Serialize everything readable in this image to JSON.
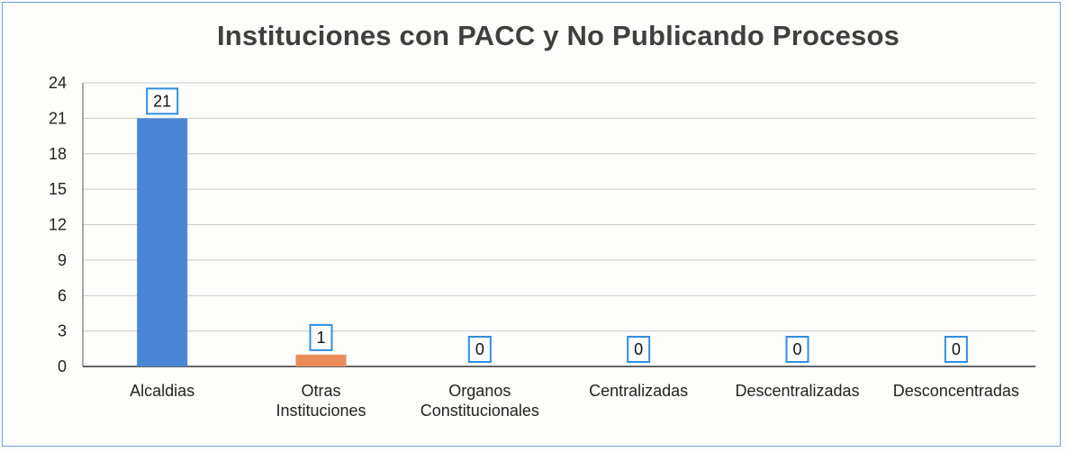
{
  "chart_data": {
    "type": "bar",
    "title": "Instituciones con PACC y No Publicando Procesos",
    "categories": [
      [
        "Alcaldias"
      ],
      [
        "Otras",
        "Instituciones"
      ],
      [
        "Organos",
        "Constitucionales"
      ],
      [
        "Centralizadas"
      ],
      [
        "Descentralizadas"
      ],
      [
        "Desconcentradas"
      ]
    ],
    "values": [
      21,
      1,
      0,
      0,
      0,
      0
    ],
    "bar_colors": [
      "#4a86d6",
      "#ec8b5a",
      "#a5a5a5",
      "#f2c12e",
      "#5b9bd5",
      "#70ad47"
    ],
    "ylim": [
      0,
      24
    ],
    "yticks": [
      0,
      3,
      6,
      9,
      12,
      15,
      18,
      21,
      24
    ],
    "grid": true,
    "data_labels": true,
    "label_border_color": "#2f8fe0"
  }
}
